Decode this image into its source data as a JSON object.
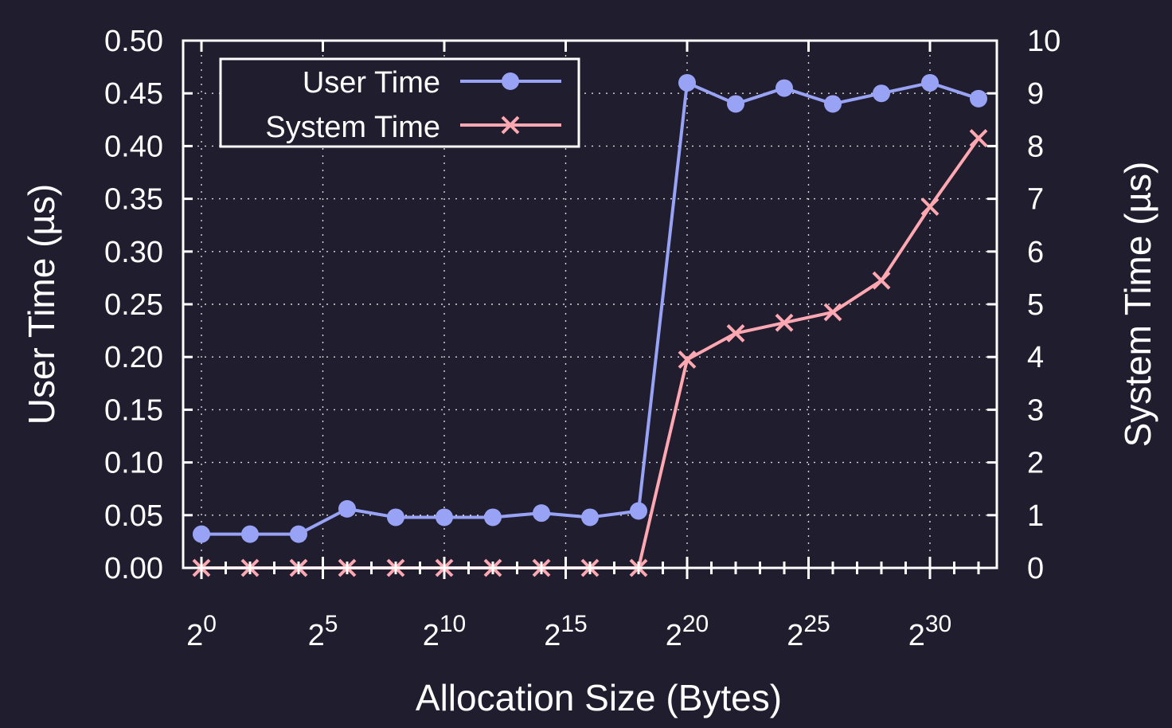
{
  "chart_data": {
    "type": "line",
    "xlabel": "Allocation Size (Bytes)",
    "ylabel": "User Time (µs)",
    "y2label": "System Time (µs)",
    "x_scale": "log2",
    "x": [
      1,
      4,
      16,
      64,
      256,
      1024,
      4096,
      16384,
      65536,
      262144,
      1048576,
      4194304,
      16777216,
      67108864,
      268435456,
      1073741824,
      4294967296
    ],
    "xlim": [
      1,
      4294967296
    ],
    "ylim": [
      0,
      0.5
    ],
    "y2lim": [
      0,
      10
    ],
    "x_ticks": [
      {
        "value": 1,
        "base": "2",
        "exp": "0"
      },
      {
        "value": 32,
        "base": "2",
        "exp": "5"
      },
      {
        "value": 1024,
        "base": "2",
        "exp": "10"
      },
      {
        "value": 32768,
        "base": "2",
        "exp": "15"
      },
      {
        "value": 1048576,
        "base": "2",
        "exp": "20"
      },
      {
        "value": 33554432,
        "base": "2",
        "exp": "25"
      },
      {
        "value": 1073741824,
        "base": "2",
        "exp": "30"
      }
    ],
    "y_ticks": [
      "0.00",
      "0.05",
      "0.10",
      "0.15",
      "0.20",
      "0.25",
      "0.30",
      "0.35",
      "0.40",
      "0.45",
      "0.50"
    ],
    "y2_ticks": [
      "0",
      "1",
      "2",
      "3",
      "4",
      "5",
      "6",
      "7",
      "8",
      "9",
      "10"
    ],
    "grid": true,
    "legend_position": "top-left",
    "series": [
      {
        "name": "User Time",
        "axis": "left",
        "color": "#99a3f5",
        "marker": "circle",
        "values": [
          0.032,
          0.032,
          0.032,
          0.056,
          0.048,
          0.048,
          0.048,
          0.052,
          0.048,
          0.054,
          0.46,
          0.44,
          0.455,
          0.44,
          0.45,
          0.46,
          0.445
        ]
      },
      {
        "name": "System Time",
        "axis": "right",
        "color": "#ffa8b2",
        "marker": "x",
        "values": [
          0,
          0,
          0,
          0,
          0,
          0,
          0,
          0,
          0,
          0,
          3.95,
          4.45,
          4.65,
          4.85,
          5.45,
          6.85,
          8.15
        ]
      }
    ]
  }
}
